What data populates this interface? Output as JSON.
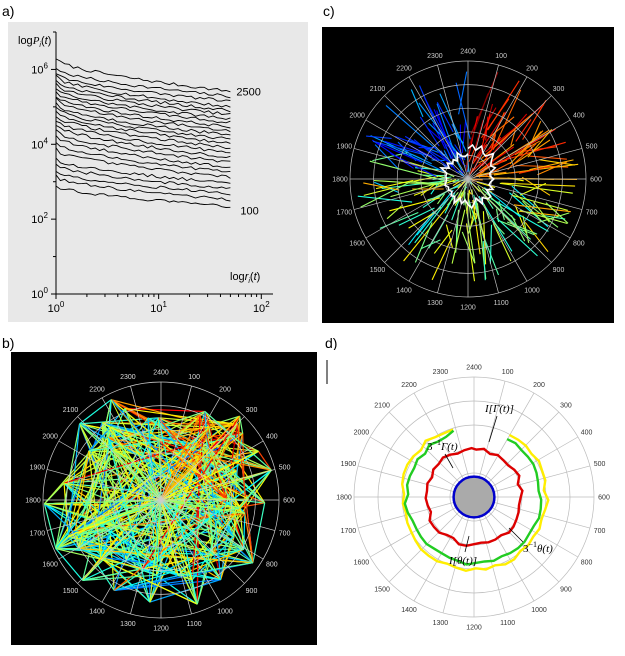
{
  "panels": {
    "a": {
      "letter": "a)"
    },
    "b": {
      "letter": "b)"
    },
    "c": {
      "letter": "c)"
    },
    "d": {
      "letter": "d)"
    }
  },
  "chart_data": [
    {
      "panel": "a",
      "type": "line",
      "xscale": "log",
      "yscale": "log",
      "xlabel": "log r_i(t)",
      "ylabel": "log P_i(t)",
      "xlim": [
        1,
        130
      ],
      "ylim": [
        1,
        10000000
      ],
      "x_tick_labels": [
        {
          "base": "10",
          "exp": "0"
        },
        {
          "base": "10",
          "exp": "1"
        },
        {
          "base": "10",
          "exp": "2"
        }
      ],
      "x_ticks": [
        1,
        10,
        100
      ],
      "y_tick_labels": [
        {
          "base": "10",
          "exp": "0"
        },
        {
          "base": "10",
          "exp": "2"
        },
        {
          "base": "10",
          "exp": "4"
        },
        {
          "base": "10",
          "exp": "6"
        }
      ],
      "y_ticks": [
        1,
        100,
        10000,
        1000000
      ],
      "annotations": [
        {
          "text": "2500",
          "attach": "top-series-end"
        },
        {
          "text": "100",
          "attach": "bottom-series-end"
        }
      ],
      "series_count": 25,
      "series_start_y": [
        2000000,
        1100000,
        800000,
        650000,
        500000,
        400000,
        310000,
        260000,
        200000,
        160000,
        120000,
        95000,
        78000,
        60000,
        45000,
        34000,
        24000,
        17000,
        11000,
        7500,
        4200,
        3000,
        2000,
        1400,
        800
      ],
      "series_end_y": [
        260000,
        190000,
        140000,
        100000,
        80000,
        62000,
        48000,
        38000,
        29000,
        23000,
        17500,
        13500,
        10500,
        8000,
        6000,
        4500,
        3300,
        2400,
        1800,
        1300,
        900,
        650,
        480,
        330,
        220
      ],
      "x_end": 50
    },
    {
      "panel": "b",
      "type": "polar-network",
      "angle_labels": [
        "100",
        "200",
        "300",
        "400",
        "500",
        "600",
        "700",
        "800",
        "900",
        "1000",
        "1100",
        "1200",
        "1300",
        "1400",
        "1500",
        "1600",
        "1700",
        "1800",
        "1900",
        "2000",
        "2100",
        "2200",
        "2300",
        "2400"
      ],
      "background": "#000000",
      "grid": true
    },
    {
      "panel": "c",
      "type": "polar-network",
      "angle_labels": [
        "100",
        "200",
        "300",
        "400",
        "500",
        "600",
        "700",
        "800",
        "900",
        "1000",
        "1100",
        "1200",
        "1300",
        "1400",
        "1500",
        "1600",
        "1700",
        "1800",
        "1900",
        "2000",
        "2100",
        "2200",
        "2300",
        "2400"
      ],
      "background": "#000000",
      "grid": true,
      "trend_color": "#ffffff"
    },
    {
      "panel": "d",
      "type": "polar-line",
      "angle_labels": [
        "100",
        "200",
        "300",
        "400",
        "500",
        "600",
        "700",
        "800",
        "900",
        "1000",
        "1100",
        "1200",
        "1300",
        "1400",
        "1500",
        "1600",
        "1700",
        "1800",
        "1900",
        "2000",
        "2100",
        "2200",
        "2300",
        "2400"
      ],
      "background": "#ffffff",
      "grid": true,
      "series": [
        {
          "color": "#ffee00",
          "radius": 0.6
        },
        {
          "color": "#22cc22",
          "radius": 0.56
        },
        {
          "color": "#dd0000",
          "radius": 0.4
        },
        {
          "color": "#0000cc",
          "radius": 0.17,
          "fill": "#aaaaaa"
        }
      ],
      "annotations": [
        {
          "label": "3^-1 Γ(t)",
          "pre": "3",
          "sup": "−1",
          "post": "Γ(t)",
          "position": "upper-left"
        },
        {
          "label": "I[Γ(t)]",
          "pre": "I",
          "post": "[Γ(t)]",
          "position": "upper-right"
        },
        {
          "label": "I[θ(t)]",
          "pre": "I",
          "post": "[θ(t)]",
          "position": "lower-left"
        },
        {
          "label": "3^-1 θ(t)",
          "pre": "3",
          "sup": "−1",
          "post": "θ(t)",
          "position": "lower-right"
        }
      ]
    }
  ]
}
